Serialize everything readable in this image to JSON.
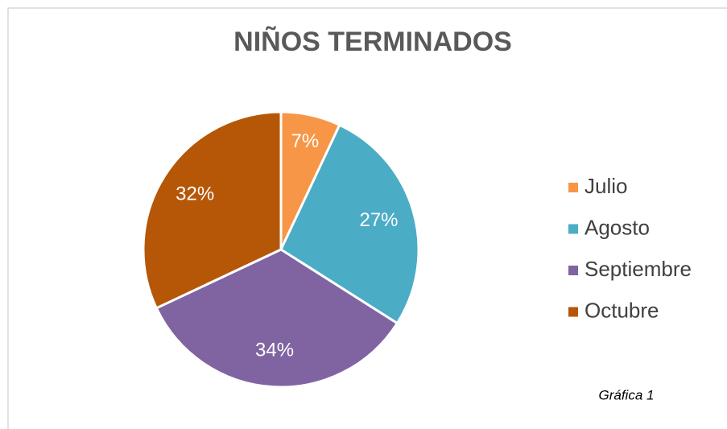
{
  "chart_data": {
    "type": "pie",
    "title": "NIÑOS TERMINADOS",
    "categories": [
      "Julio",
      "Agosto",
      "Septiembre",
      "Octubre"
    ],
    "values": [
      7,
      27,
      34,
      32
    ],
    "value_labels": [
      "7%",
      "27%",
      "34%",
      "32%"
    ],
    "colors": [
      "#f79646",
      "#4bacc6",
      "#8064a2",
      "#b65708"
    ],
    "legend": "right",
    "annotation": "Gráfica 1"
  }
}
